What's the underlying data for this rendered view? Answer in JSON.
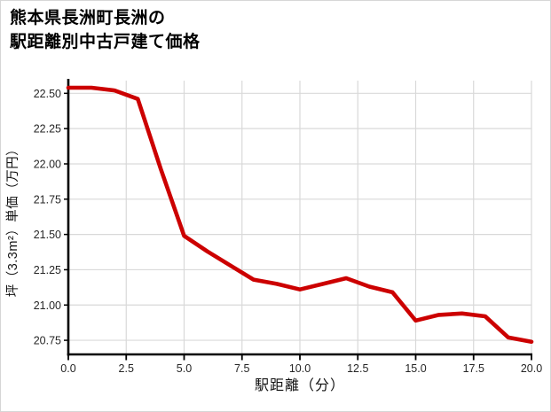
{
  "title": {
    "line1": "熊本県長洲町長洲の",
    "line2": "駅距離別中古戸建て価格"
  },
  "chart_data": {
    "type": "line",
    "title": "熊本県長洲町長洲の駅距離別中古戸建て価格",
    "xlabel": "駅距離（分）",
    "ylabel": "坪（3.3m²）単価（万円）",
    "x": [
      0,
      1,
      2,
      3,
      4,
      5,
      6,
      7,
      8,
      9,
      10,
      11,
      12,
      13,
      14,
      15,
      16,
      17,
      18,
      19,
      20
    ],
    "y": [
      22.54,
      22.54,
      22.52,
      22.46,
      21.96,
      21.49,
      21.38,
      21.28,
      21.18,
      21.15,
      21.11,
      21.15,
      21.19,
      21.13,
      21.09,
      20.89,
      20.93,
      20.94,
      20.92,
      20.77,
      20.74
    ],
    "xticks": [
      0,
      2.5,
      5,
      7.5,
      10,
      12.5,
      15,
      17.5,
      20
    ],
    "xtick_labels": [
      "0.0",
      "2.5",
      "5.0",
      "7.5",
      "10.0",
      "12.5",
      "15.0",
      "17.5",
      "20.0"
    ],
    "yticks": [
      20.75,
      21.0,
      21.25,
      21.5,
      21.75,
      22.0,
      22.25,
      22.5
    ],
    "ytick_labels": [
      "20.75",
      "21.00",
      "21.25",
      "21.50",
      "21.75",
      "22.00",
      "22.25",
      "22.50"
    ],
    "xlim": [
      0,
      20
    ],
    "ylim": [
      20.65,
      22.59
    ],
    "grid": "on",
    "legend": "none",
    "line_color": "#cc0000",
    "grid_color": "#d9d9d9",
    "spine_color": "#000000",
    "tick_label_color": "#262626"
  }
}
